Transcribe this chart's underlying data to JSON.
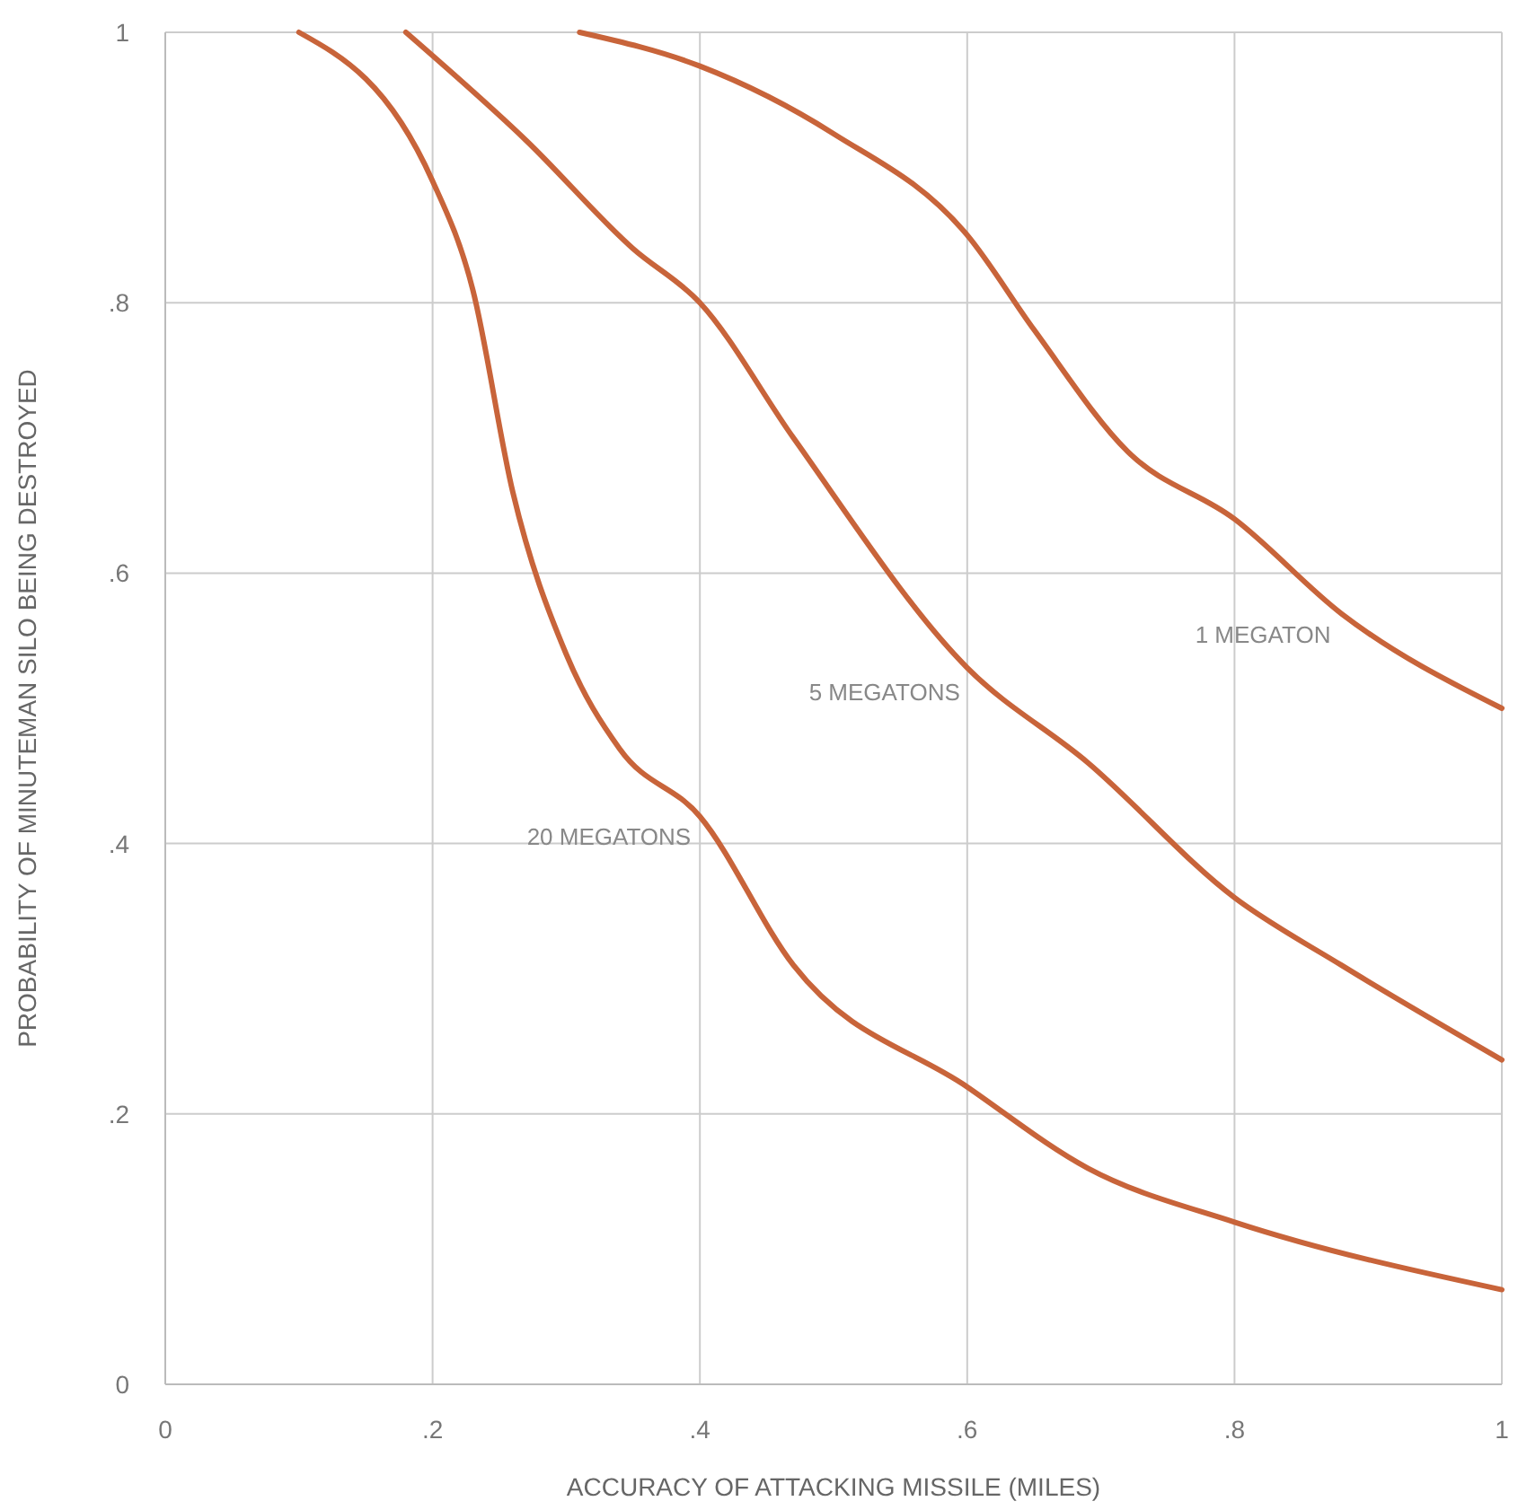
{
  "chart_data": {
    "type": "line",
    "xlabel": "ACCURACY OF ATTACKING MISSILE (MILES)",
    "ylabel": "PROBABILITY OF MINUTEMAN SILO BEING DESTROYED",
    "xlim": [
      0,
      1
    ],
    "ylim": [
      0,
      1
    ],
    "xticks": [
      0,
      {
        "value": 0.2,
        "label": ".2"
      },
      {
        "value": 0.4,
        "label": ".4"
      },
      {
        "value": 0.6,
        "label": ".6"
      },
      {
        "value": 0.8,
        "label": ".8"
      },
      1
    ],
    "yticks": [
      0,
      {
        "value": 0.2,
        "label": ".2"
      },
      {
        "value": 0.4,
        "label": ".4"
      },
      {
        "value": 0.6,
        "label": ".6"
      },
      {
        "value": 0.8,
        "label": ".8"
      },
      1
    ],
    "grid": true,
    "legend": false,
    "series": [
      {
        "name": "1 MEGATON",
        "color": "#c8643a",
        "x": [
          0.31,
          0.4,
          0.5,
          0.6,
          0.65,
          0.72,
          0.8,
          0.88,
          1
        ],
        "values": [
          1,
          0.975,
          0.925,
          0.85,
          0.78,
          0.69,
          0.64,
          0.57,
          0.5
        ]
      },
      {
        "name": "5 MEGATONS",
        "color": "#c8643a",
        "x": [
          0.18,
          0.27,
          0.35,
          0.4,
          0.47,
          0.6,
          0.69,
          0.8,
          0.88,
          1
        ],
        "values": [
          1,
          0.92,
          0.84,
          0.8,
          0.7,
          0.53,
          0.46,
          0.36,
          0.31,
          0.24
        ]
      },
      {
        "name": "20 MEGATONS",
        "color": "#c8643a",
        "x": [
          0.1,
          0.2,
          0.23,
          0.26,
          0.3,
          0.34,
          0.4,
          0.47,
          0.6,
          0.69,
          0.8,
          1
        ],
        "values": [
          1,
          0.89,
          0.81,
          0.66,
          0.54,
          0.47,
          0.42,
          0.31,
          0.22,
          0.16,
          0.12,
          0.07
        ]
      }
    ]
  }
}
